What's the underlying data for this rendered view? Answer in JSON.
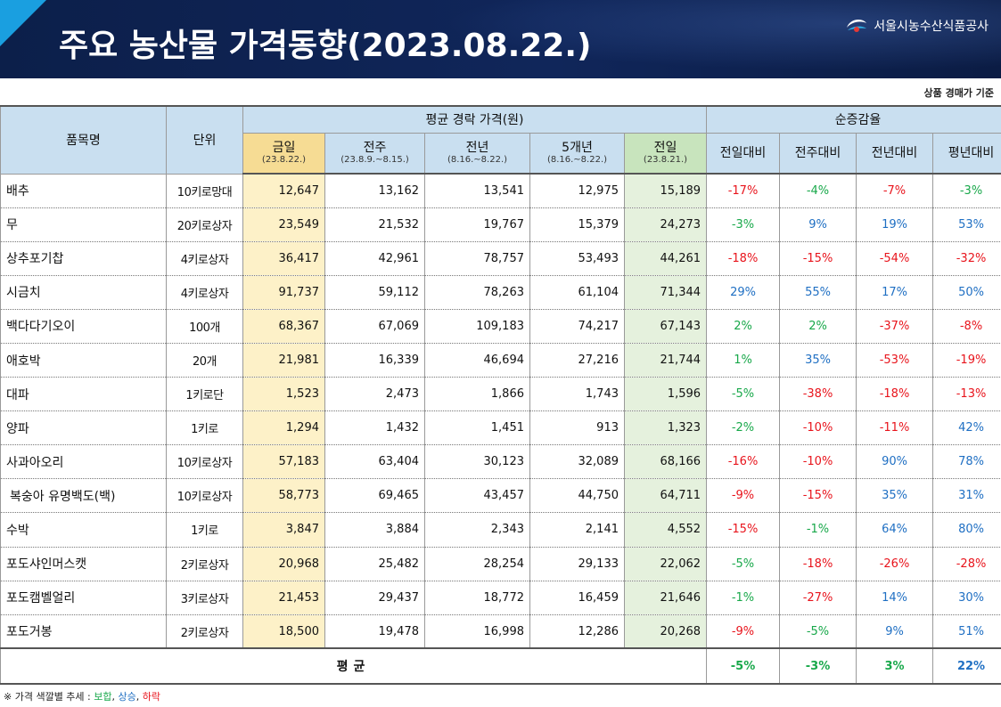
{
  "header": {
    "title": "주요 농산물 가격동향(2023.08.22.)",
    "org_name": "서울시농수산식품공사",
    "logo_icon": "corporation-logo-icon"
  },
  "note_top": "상품 경매가 기준",
  "table": {
    "col_item": "품목명",
    "col_unit": "단위",
    "group_price": "평균 경락 가격(원)",
    "group_change": "순증감율",
    "price_cols": [
      {
        "label": "금일",
        "sub": "(23.8.22.)"
      },
      {
        "label": "전주",
        "sub": "(23.8.9.~8.15.)"
      },
      {
        "label": "전년",
        "sub": "(8.16.~8.22.)"
      },
      {
        "label": "5개년",
        "sub": "(8.16.~8.22.)"
      },
      {
        "label": "전일",
        "sub": "(23.8.21.)"
      }
    ],
    "change_cols": [
      "전일대비",
      "전주대비",
      "전년대비",
      "평년대비"
    ],
    "rows": [
      {
        "name": "배추",
        "unit": "10키로망대",
        "prices": [
          "12,647",
          "13,162",
          "13,541",
          "12,975",
          "15,189"
        ],
        "changes": [
          {
            "v": "-17%",
            "t": "down"
          },
          {
            "v": "-4%",
            "t": "flat"
          },
          {
            "v": "-7%",
            "t": "down"
          },
          {
            "v": "-3%",
            "t": "flat"
          }
        ]
      },
      {
        "name": "무",
        "unit": "20키로상자",
        "prices": [
          "23,549",
          "21,532",
          "19,767",
          "15,379",
          "24,273"
        ],
        "changes": [
          {
            "v": "-3%",
            "t": "flat"
          },
          {
            "v": "9%",
            "t": "up"
          },
          {
            "v": "19%",
            "t": "up"
          },
          {
            "v": "53%",
            "t": "up"
          }
        ]
      },
      {
        "name": "상추포기찹",
        "unit": "4키로상자",
        "prices": [
          "36,417",
          "42,961",
          "78,757",
          "53,493",
          "44,261"
        ],
        "changes": [
          {
            "v": "-18%",
            "t": "down"
          },
          {
            "v": "-15%",
            "t": "down"
          },
          {
            "v": "-54%",
            "t": "down"
          },
          {
            "v": "-32%",
            "t": "down"
          }
        ]
      },
      {
        "name": "시금치",
        "unit": "4키로상자",
        "prices": [
          "91,737",
          "59,112",
          "78,263",
          "61,104",
          "71,344"
        ],
        "changes": [
          {
            "v": "29%",
            "t": "up"
          },
          {
            "v": "55%",
            "t": "up"
          },
          {
            "v": "17%",
            "t": "up"
          },
          {
            "v": "50%",
            "t": "up"
          }
        ]
      },
      {
        "name": "백다다기오이",
        "unit": "100개",
        "prices": [
          "68,367",
          "67,069",
          "109,183",
          "74,217",
          "67,143"
        ],
        "changes": [
          {
            "v": "2%",
            "t": "flat"
          },
          {
            "v": "2%",
            "t": "flat"
          },
          {
            "v": "-37%",
            "t": "down"
          },
          {
            "v": "-8%",
            "t": "down"
          }
        ]
      },
      {
        "name": "애호박",
        "unit": "20개",
        "prices": [
          "21,981",
          "16,339",
          "46,694",
          "27,216",
          "21,744"
        ],
        "changes": [
          {
            "v": "1%",
            "t": "flat"
          },
          {
            "v": "35%",
            "t": "up"
          },
          {
            "v": "-53%",
            "t": "down"
          },
          {
            "v": "-19%",
            "t": "down"
          }
        ]
      },
      {
        "name": "대파",
        "unit": "1키로단",
        "prices": [
          "1,523",
          "2,473",
          "1,866",
          "1,743",
          "1,596"
        ],
        "changes": [
          {
            "v": "-5%",
            "t": "flat"
          },
          {
            "v": "-38%",
            "t": "down"
          },
          {
            "v": "-18%",
            "t": "down"
          },
          {
            "v": "-13%",
            "t": "down"
          }
        ]
      },
      {
        "name": "양파",
        "unit": "1키로",
        "prices": [
          "1,294",
          "1,432",
          "1,451",
          "913",
          "1,323"
        ],
        "changes": [
          {
            "v": "-2%",
            "t": "flat"
          },
          {
            "v": "-10%",
            "t": "down"
          },
          {
            "v": "-11%",
            "t": "down"
          },
          {
            "v": "42%",
            "t": "up"
          }
        ]
      },
      {
        "name": "사과아오리",
        "unit": "10키로상자",
        "prices": [
          "57,183",
          "63,404",
          "30,123",
          "32,089",
          "68,166"
        ],
        "changes": [
          {
            "v": "-16%",
            "t": "down"
          },
          {
            "v": "-10%",
            "t": "down"
          },
          {
            "v": "90%",
            "t": "up"
          },
          {
            "v": "78%",
            "t": "up"
          }
        ]
      },
      {
        "name": "복숭아 유명백도(백)",
        "unit": "10키로상자",
        "prices": [
          "58,773",
          "69,465",
          "43,457",
          "44,750",
          "64,711"
        ],
        "changes": [
          {
            "v": "-9%",
            "t": "down"
          },
          {
            "v": "-15%",
            "t": "down"
          },
          {
            "v": "35%",
            "t": "up"
          },
          {
            "v": "31%",
            "t": "up"
          }
        ]
      },
      {
        "name": "수박",
        "unit": "1키로",
        "prices": [
          "3,847",
          "3,884",
          "2,343",
          "2,141",
          "4,552"
        ],
        "changes": [
          {
            "v": "-15%",
            "t": "down"
          },
          {
            "v": "-1%",
            "t": "flat"
          },
          {
            "v": "64%",
            "t": "up"
          },
          {
            "v": "80%",
            "t": "up"
          }
        ]
      },
      {
        "name": "포도샤인머스캣",
        "unit": "2키로상자",
        "prices": [
          "20,968",
          "25,482",
          "28,254",
          "29,133",
          "22,062"
        ],
        "changes": [
          {
            "v": "-5%",
            "t": "flat"
          },
          {
            "v": "-18%",
            "t": "down"
          },
          {
            "v": "-26%",
            "t": "down"
          },
          {
            "v": "-28%",
            "t": "down"
          }
        ]
      },
      {
        "name": "포도캠벨얼리",
        "unit": "3키로상자",
        "prices": [
          "21,453",
          "29,437",
          "18,772",
          "16,459",
          "21,646"
        ],
        "changes": [
          {
            "v": "-1%",
            "t": "flat"
          },
          {
            "v": "-27%",
            "t": "down"
          },
          {
            "v": "14%",
            "t": "up"
          },
          {
            "v": "30%",
            "t": "up"
          }
        ]
      },
      {
        "name": "포도거봉",
        "unit": "2키로상자",
        "prices": [
          "18,500",
          "19,478",
          "16,998",
          "12,286",
          "20,268"
        ],
        "changes": [
          {
            "v": "-9%",
            "t": "down"
          },
          {
            "v": "-5%",
            "t": "flat"
          },
          {
            "v": "9%",
            "t": "up"
          },
          {
            "v": "51%",
            "t": "up"
          }
        ]
      }
    ],
    "average": {
      "label": "평균",
      "changes": [
        {
          "v": "-5%",
          "t": "flat"
        },
        {
          "v": "-3%",
          "t": "flat"
        },
        {
          "v": "3%",
          "t": "flat"
        },
        {
          "v": "22%",
          "t": "up"
        }
      ]
    }
  },
  "legend": {
    "prefix": "※ 가격 색깔별 추세 : ",
    "flat": "보합",
    "sep1": ", ",
    "up": "상승",
    "sep2": ", ",
    "down": "하락"
  },
  "colors": {
    "header_bg": "#0c1f4a",
    "accent": "#1a9fe0",
    "header_cell": "#c9dff0",
    "today_col": "#fdf1c8",
    "prev_day_col": "#e5f1dd",
    "down": "#e8141c",
    "up": "#1f6fc3",
    "flat": "#18a84a"
  }
}
